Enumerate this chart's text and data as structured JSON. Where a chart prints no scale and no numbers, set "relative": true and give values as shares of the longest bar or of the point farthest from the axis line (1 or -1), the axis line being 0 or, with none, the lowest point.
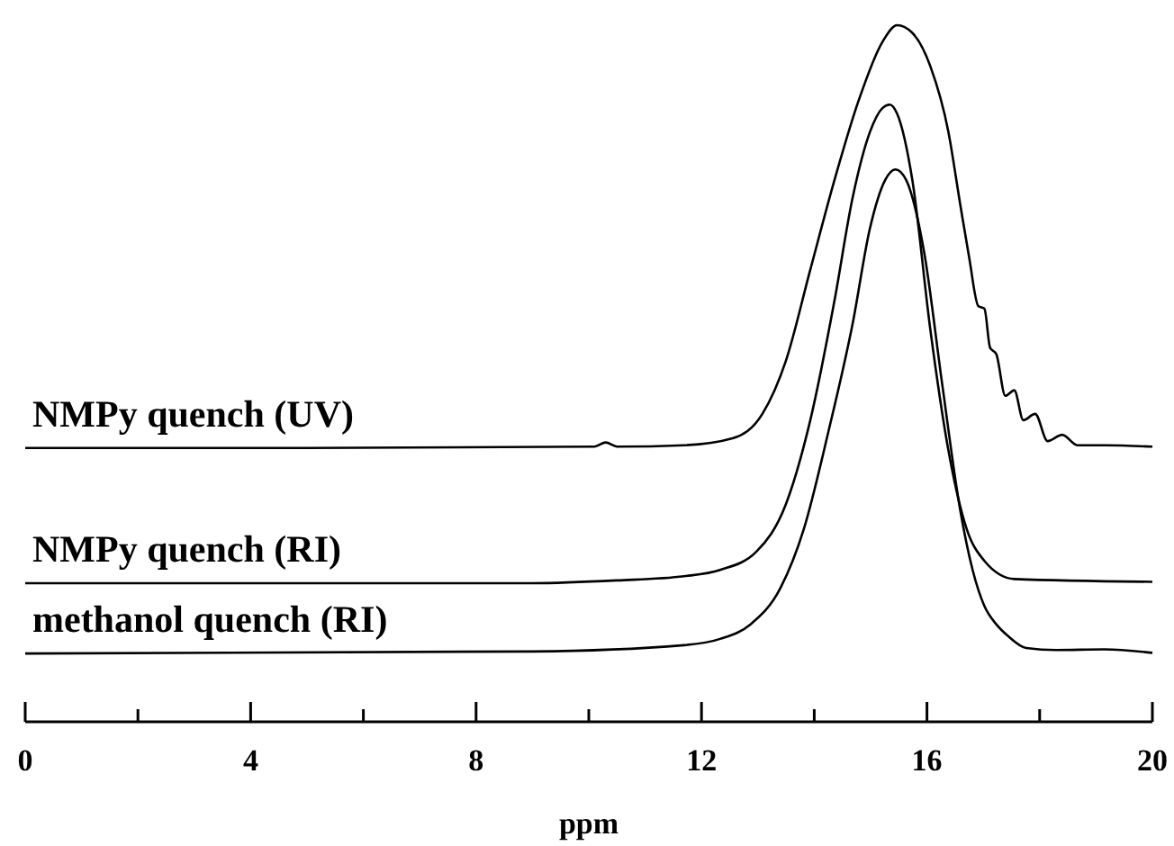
{
  "chart_data": {
    "type": "line",
    "xlabel": "ppm",
    "relative": true,
    "xlim": [
      0,
      20
    ],
    "xticks": [
      0,
      {
        "value": 2,
        "label": null
      },
      4,
      {
        "value": 6,
        "label": null
      },
      8,
      {
        "value": 10,
        "label": null
      },
      12,
      {
        "value": 14,
        "label": null
      },
      16,
      {
        "value": 18,
        "label": null
      },
      20
    ],
    "grid": false,
    "legend": false,
    "marker": "none",
    "line_style": "solid",
    "series": [
      {
        "name": "NMPy quench (UV)",
        "color": "#000000",
        "x": [
          0,
          5,
          10.1,
          10.3,
          10.5,
          11.69,
          12.55,
          13.08,
          13.5,
          13.93,
          14.36,
          14.78,
          15.21,
          15.47,
          15.74,
          16.06,
          16.38,
          16.59,
          16.75,
          16.91,
          17.02,
          17.12,
          17.23,
          17.39,
          17.55,
          17.71,
          17.92,
          18.14,
          18.4,
          18.67,
          19.15,
          20
        ],
        "values": [
          0.393,
          0.393,
          0.395,
          0.401,
          0.395,
          0.397,
          0.407,
          0.442,
          0.519,
          0.649,
          0.778,
          0.89,
          0.976,
          1,
          0.989,
          0.941,
          0.847,
          0.743,
          0.666,
          0.597,
          0.593,
          0.537,
          0.528,
          0.468,
          0.476,
          0.433,
          0.442,
          0.403,
          0.412,
          0.397,
          0.397,
          0.395
        ]
      },
      {
        "name": "NMPy quench (RI)",
        "color": "#000000",
        "x": [
          0,
          9,
          10.5,
          11.69,
          12.33,
          12.97,
          13.5,
          13.93,
          14.36,
          14.68,
          14.99,
          15.21,
          15.34,
          15.47,
          15.74,
          16.06,
          16.38,
          16.7,
          17.02,
          17.55,
          20
        ],
        "values": [
          0.199,
          0.199,
          0.203,
          0.209,
          0.218,
          0.244,
          0.313,
          0.433,
          0.605,
          0.752,
          0.847,
          0.881,
          0.886,
          0.873,
          0.778,
          0.563,
          0.39,
          0.278,
          0.231,
          0.205,
          0.201
        ]
      },
      {
        "name": "methanol quench (RI)",
        "color": "#000000",
        "x": [
          0,
          9,
          11.69,
          12.33,
          12.87,
          13.4,
          13.82,
          14.25,
          14.68,
          14.99,
          15.26,
          15.44,
          15.63,
          15.95,
          16.27,
          16.59,
          16.81,
          17.02,
          17.23,
          17.44,
          17.76,
          18.29,
          19.15,
          20
        ],
        "values": [
          0.098,
          0.101,
          0.11,
          0.119,
          0.14,
          0.192,
          0.278,
          0.416,
          0.571,
          0.709,
          0.778,
          0.793,
          0.778,
          0.674,
          0.485,
          0.304,
          0.218,
          0.166,
          0.14,
          0.123,
          0.106,
          0.103,
          0.104,
          0.099
        ]
      }
    ]
  }
}
